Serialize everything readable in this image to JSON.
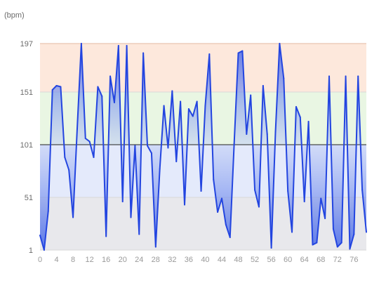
{
  "chart_data": {
    "type": "area",
    "unit_label": "(bpm)",
    "baseline": 101,
    "ylim": [
      1,
      197
    ],
    "xlim": [
      0,
      79
    ],
    "yticks": [
      1,
      51,
      101,
      151,
      197
    ],
    "xticks": [
      0,
      4,
      8,
      12,
      16,
      20,
      24,
      28,
      32,
      36,
      40,
      44,
      48,
      52,
      56,
      60,
      64,
      68,
      72,
      76
    ],
    "zones": [
      {
        "from": 151,
        "to": 197,
        "color": "#fde8dc"
      },
      {
        "from": 101,
        "to": 151,
        "color": "#e9f6e3"
      },
      {
        "from": 51,
        "to": 101,
        "color": "#e4eafb"
      },
      {
        "from": 1,
        "to": 51,
        "color": "#e8e8ec"
      }
    ],
    "colors": {
      "line": "#2345e0",
      "fill_top": "#2b52e8",
      "fill_base": "#c2cff5",
      "baseline": "#222222",
      "zone_border": "#e3b8a0"
    },
    "x": [
      0,
      1,
      2,
      3,
      4,
      5,
      6,
      7,
      8,
      9,
      10,
      11,
      12,
      13,
      14,
      15,
      16,
      17,
      18,
      19,
      20,
      21,
      22,
      23,
      24,
      25,
      26,
      27,
      28,
      29,
      30,
      31,
      32,
      33,
      34,
      35,
      36,
      37,
      38,
      39,
      40,
      41,
      42,
      43,
      44,
      45,
      46,
      47,
      48,
      49,
      50,
      51,
      52,
      53,
      54,
      55,
      56,
      57,
      58,
      59,
      60,
      61,
      62,
      63,
      64,
      65,
      66,
      67,
      68,
      69,
      70,
      71,
      72,
      73,
      74,
      75,
      76,
      77,
      78,
      79
    ],
    "y": [
      15,
      1,
      38,
      153,
      157,
      156,
      89,
      77,
      32,
      116,
      197,
      107,
      104,
      89,
      156,
      147,
      14,
      166,
      141,
      195,
      47,
      195,
      32,
      100,
      16,
      188,
      100,
      93,
      4,
      78,
      138,
      98,
      152,
      85,
      142,
      44,
      135,
      128,
      142,
      57,
      138,
      187,
      68,
      37,
      50,
      25,
      13,
      102,
      188,
      190,
      111,
      148,
      58,
      42,
      157,
      111,
      3,
      113,
      197,
      164,
      57,
      18,
      137,
      127,
      47,
      123,
      6,
      8,
      50,
      31,
      166,
      21,
      4,
      8,
      166,
      2,
      16,
      166,
      58,
      18
    ]
  }
}
